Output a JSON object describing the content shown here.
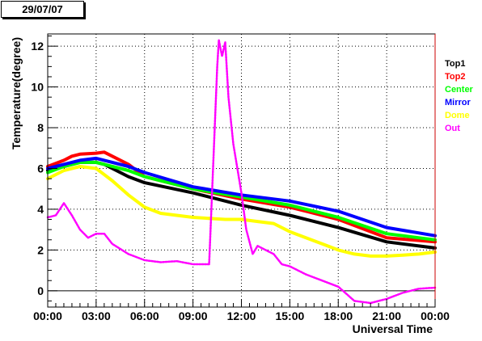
{
  "header": {
    "date_label": "29/07/07"
  },
  "chart_data": {
    "type": "scatter",
    "title": "",
    "xlabel": "Universal Time",
    "ylabel": "Temperature(degree)",
    "xlim": [
      0,
      24
    ],
    "ylim": [
      -0.8,
      12.6
    ],
    "x_ticks": [
      0,
      3,
      6,
      9,
      12,
      15,
      18,
      21,
      24
    ],
    "x_tick_labels": [
      "00:00",
      "03:00",
      "06:00",
      "09:00",
      "12:00",
      "15:00",
      "18:00",
      "21:00",
      "00:00"
    ],
    "y_ticks": [
      0,
      2,
      4,
      6,
      8,
      10,
      12
    ],
    "y_tick_labels": [
      "0",
      "2",
      "4",
      "6",
      "8",
      "10",
      "12"
    ],
    "zero_line": true,
    "grid": "dotted",
    "legend_position": "right",
    "series": [
      {
        "name": "Top1",
        "color": "#000000",
        "x": [
          0,
          1,
          2,
          3,
          3.5,
          5,
          6,
          9,
          12,
          15,
          18,
          21,
          24
        ],
        "y": [
          5.9,
          6.1,
          6.3,
          6.3,
          6.2,
          5.6,
          5.3,
          4.8,
          4.2,
          3.7,
          3.1,
          2.4,
          2.1
        ]
      },
      {
        "name": "Top2",
        "color": "#ff0000",
        "x": [
          0,
          1,
          1.5,
          2,
          3,
          3.5,
          4,
          5,
          6,
          9,
          12,
          15,
          18,
          21,
          24
        ],
        "y": [
          6.1,
          6.4,
          6.6,
          6.7,
          6.75,
          6.8,
          6.6,
          6.2,
          5.6,
          5.0,
          4.5,
          4.1,
          3.5,
          2.6,
          2.4
        ]
      },
      {
        "name": "Center",
        "color": "#00ff00",
        "x": [
          0,
          1,
          2,
          3,
          3.5,
          5,
          6,
          9,
          12,
          15,
          18,
          21,
          24
        ],
        "y": [
          5.8,
          6.1,
          6.3,
          6.3,
          6.2,
          5.9,
          5.6,
          5.0,
          4.6,
          4.2,
          3.6,
          2.8,
          2.5
        ]
      },
      {
        "name": "Mirror",
        "color": "#0000ff",
        "x": [
          0,
          1,
          2,
          3,
          3.5,
          5,
          6,
          9,
          12,
          15,
          18,
          21,
          24
        ],
        "y": [
          6.0,
          6.2,
          6.4,
          6.5,
          6.4,
          6.1,
          5.8,
          5.1,
          4.7,
          4.4,
          3.9,
          3.1,
          2.7
        ]
      },
      {
        "name": "Dome",
        "color": "#ffff00",
        "x": [
          0,
          1,
          2,
          3,
          4,
          5,
          6,
          7,
          9,
          11,
          12,
          13,
          14,
          15,
          16,
          17,
          18,
          19,
          20,
          21,
          22,
          23,
          24
        ],
        "y": [
          5.5,
          5.9,
          6.1,
          6.0,
          5.4,
          4.7,
          4.1,
          3.8,
          3.6,
          3.5,
          3.5,
          3.4,
          3.3,
          2.9,
          2.6,
          2.3,
          2.0,
          1.8,
          1.7,
          1.7,
          1.75,
          1.8,
          1.9
        ]
      },
      {
        "name": "Out",
        "color": "#ff00ff",
        "x": [
          0,
          0.5,
          1,
          1.5,
          2,
          2.5,
          3,
          3.5,
          4,
          5,
          6,
          7,
          8,
          9,
          10,
          10.5,
          10.6,
          10.8,
          11,
          11.2,
          11.5,
          12,
          12.3,
          12.7,
          13,
          13.5,
          14,
          14.5,
          15,
          16,
          17,
          18,
          19,
          20,
          21,
          22,
          23,
          24
        ],
        "y": [
          3.6,
          3.7,
          4.3,
          3.7,
          3.0,
          2.6,
          2.8,
          2.8,
          2.3,
          1.8,
          1.5,
          1.4,
          1.45,
          1.3,
          1.3,
          11.0,
          12.3,
          11.5,
          12.2,
          9.5,
          7.2,
          4.8,
          3.0,
          1.8,
          2.2,
          2.0,
          1.8,
          1.3,
          1.2,
          0.8,
          0.5,
          0.2,
          -0.5,
          -0.6,
          -0.4,
          -0.1,
          0.1,
          0.15
        ]
      }
    ]
  }
}
